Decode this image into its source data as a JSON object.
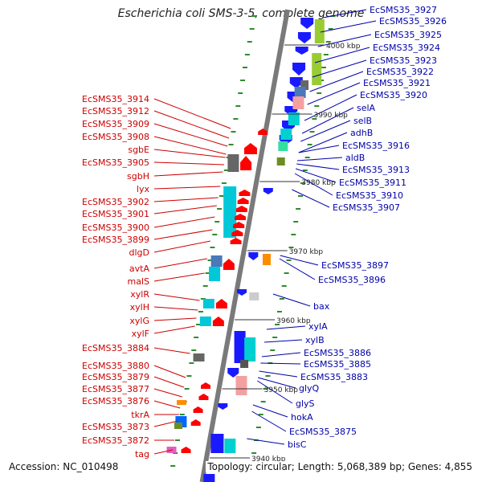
{
  "title": "Escherichia coli SMS-3-5, complete genome",
  "accession": "Accession: NC_010498",
  "topology": "Topology: circular; Length: 5,068,389 bp; Genes: 4,855",
  "colors": {
    "left_label": "#cc0000",
    "right_label": "#0000aa",
    "backbone": "#7a7a7a"
  },
  "kbp_labels": [
    "4000 kbp",
    "3990 kbp",
    "3980 kbp",
    "3970 kbp",
    "3960 kbp",
    "3950 kbp",
    "3940 kbp"
  ],
  "left_genes": [
    "EcSMS35_3914",
    "EcSMS35_3912",
    "EcSMS35_3909",
    "EcSMS35_3908",
    "sgbE",
    "EcSMS35_3905",
    "sgbH",
    "lyx",
    "EcSMS35_3902",
    "EcSMS35_3901",
    "EcSMS35_3900",
    "EcSMS35_3899",
    "dlgD",
    "avtA",
    "malS",
    "xylR",
    "xylH",
    "xylG",
    "xylF",
    "EcSMS35_3884",
    "EcSMS35_3880",
    "EcSMS35_3879",
    "EcSMS35_3877",
    "EcSMS35_3876",
    "tkrA",
    "EcSMS35_3873",
    "EcSMS35_3872",
    "tag"
  ],
  "right_genes": [
    "EcSMS35_3927",
    "EcSMS35_3926",
    "EcSMS35_3925",
    "EcSMS35_3924",
    "EcSMS35_3923",
    "EcSMS35_3922",
    "EcSMS35_3921",
    "EcSMS35_3920",
    "selA",
    "selB",
    "adhB",
    "EcSMS35_3916",
    "aldB",
    "EcSMS35_3913",
    "EcSMS35_3911",
    "EcSMS35_3910",
    "EcSMS35_3907",
    "EcSMS35_3897",
    "EcSMS35_3896",
    "bax",
    "xylA",
    "xylB",
    "EcSMS35_3886",
    "EcSMS35_3885",
    "EcSMS35_3883",
    "glyQ",
    "glyS",
    "hokA",
    "EcSMS35_3875",
    "bisC"
  ]
}
